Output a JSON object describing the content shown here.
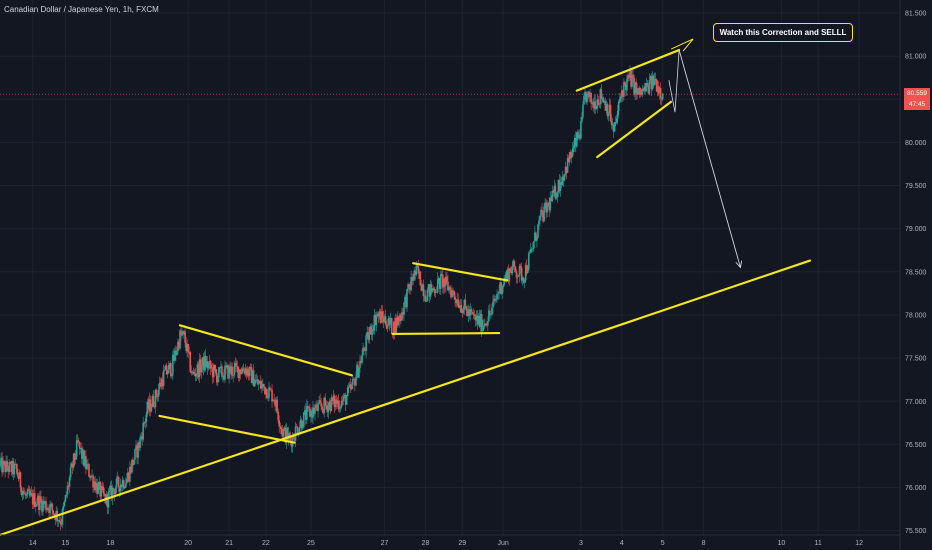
{
  "header": {
    "symbol_line": "Canadian Dollar / Japanese Yen, 1h, FXCM"
  },
  "annotation": {
    "callout_text": "Watch this Correction and SELLL"
  },
  "price_axis": {
    "labels": [
      "81.500",
      "81.000",
      "80.500",
      "80.000",
      "79.500",
      "79.000",
      "78.500",
      "78.000",
      "77.500",
      "77.000",
      "76.500",
      "76.000",
      "75.500"
    ],
    "last_price": "80.559",
    "countdown": "47:45"
  },
  "time_axis": {
    "labels": [
      "14",
      "15",
      "18",
      "20",
      "21",
      "22",
      "25",
      "27",
      "28",
      "29",
      "Jun",
      "3",
      "4",
      "5",
      "8",
      "10",
      "11",
      "12"
    ]
  },
  "colors": {
    "background": "#131722",
    "candle_up": "#26a69a",
    "candle_down": "#ef5350",
    "drawing": "#f5e51b",
    "projection_arrow": "#d1d4dc",
    "axis_text": "#b2b5be"
  },
  "chart_data": {
    "type": "candlestick",
    "title": "Canadian Dollar / Japanese Yen, 1h, FXCM",
    "ylim": [
      75.45,
      81.65
    ],
    "price_ticks": [
      81.5,
      81.0,
      80.5,
      80.0,
      79.5,
      79.0,
      78.5,
      78.0,
      77.5,
      77.0,
      76.5,
      76.0,
      75.5
    ],
    "x_index_range": [
      0,
      220
    ],
    "x_ticks": [
      {
        "label": "14",
        "index": 8
      },
      {
        "label": "15",
        "index": 16
      },
      {
        "label": "18",
        "index": 27
      },
      {
        "label": "20",
        "index": 46
      },
      {
        "label": "21",
        "index": 56
      },
      {
        "label": "22",
        "index": 65
      },
      {
        "label": "25",
        "index": 76
      },
      {
        "label": "27",
        "index": 94
      },
      {
        "label": "28",
        "index": 104
      },
      {
        "label": "29",
        "index": 113
      },
      {
        "label": "Jun",
        "index": 123
      },
      {
        "label": "3",
        "index": 142
      },
      {
        "label": "4",
        "index": 152
      },
      {
        "label": "5",
        "index": 162
      },
      {
        "label": "8",
        "index": 172
      },
      {
        "label": "10",
        "index": 191
      },
      {
        "label": "11",
        "index": 200
      },
      {
        "label": "12",
        "index": 210
      }
    ],
    "close_path": [
      [
        0,
        76.25
      ],
      [
        4,
        76.2
      ],
      [
        6,
        75.9
      ],
      [
        9,
        75.85
      ],
      [
        12,
        75.78
      ],
      [
        15,
        75.62
      ],
      [
        17,
        76.1
      ],
      [
        19,
        76.5
      ],
      [
        21,
        76.25
      ],
      [
        24,
        75.98
      ],
      [
        26,
        75.85
      ],
      [
        28,
        76.0
      ],
      [
        31,
        76.1
      ],
      [
        34,
        76.5
      ],
      [
        36,
        76.9
      ],
      [
        38,
        77.05
      ],
      [
        40,
        77.3
      ],
      [
        42,
        77.4
      ],
      [
        44,
        77.75
      ],
      [
        45,
        77.75
      ],
      [
        47,
        77.3
      ],
      [
        50,
        77.45
      ],
      [
        53,
        77.3
      ],
      [
        56,
        77.35
      ],
      [
        60,
        77.38
      ],
      [
        63,
        77.2
      ],
      [
        65,
        77.15
      ],
      [
        67,
        77.05
      ],
      [
        69,
        76.65
      ],
      [
        71,
        76.55
      ],
      [
        73,
        76.72
      ],
      [
        75,
        76.85
      ],
      [
        78,
        76.92
      ],
      [
        81,
        76.98
      ],
      [
        84,
        77.0
      ],
      [
        86,
        77.15
      ],
      [
        88,
        77.45
      ],
      [
        90,
        77.75
      ],
      [
        92,
        78.0
      ],
      [
        94,
        77.95
      ],
      [
        96,
        77.85
      ],
      [
        98,
        78.0
      ],
      [
        101,
        78.45
      ],
      [
        102,
        78.5
      ],
      [
        104,
        78.25
      ],
      [
        106,
        78.3
      ],
      [
        108,
        78.4
      ],
      [
        110,
        78.3
      ],
      [
        113,
        78.1
      ],
      [
        116,
        77.95
      ],
      [
        118,
        77.9
      ],
      [
        120,
        78.02
      ],
      [
        122,
        78.3
      ],
      [
        125,
        78.55
      ],
      [
        128,
        78.45
      ],
      [
        130,
        78.75
      ],
      [
        132,
        79.1
      ],
      [
        135,
        79.35
      ],
      [
        137,
        79.55
      ],
      [
        140,
        79.9
      ],
      [
        142,
        80.15
      ],
      [
        143,
        80.55
      ],
      [
        145,
        80.45
      ],
      [
        147,
        80.55
      ],
      [
        149,
        80.35
      ],
      [
        150,
        80.1
      ],
      [
        152,
        80.6
      ],
      [
        154,
        80.75
      ],
      [
        156,
        80.55
      ],
      [
        158,
        80.62
      ],
      [
        160,
        80.72
      ],
      [
        162,
        80.56
      ]
    ],
    "trendlines": [
      {
        "name": "main support",
        "from": [
          0,
          75.45
        ],
        "to": [
          198,
          78.63
        ]
      },
      {
        "name": "first channel top",
        "from": [
          44,
          77.88
        ],
        "to": [
          86,
          77.3
        ]
      },
      {
        "name": "first channel bottom",
        "from": [
          39,
          76.83
        ],
        "to": [
          72,
          76.52
        ]
      },
      {
        "name": "second channel top",
        "from": [
          101,
          78.6
        ],
        "to": [
          124,
          78.4
        ]
      },
      {
        "name": "second channel bottom",
        "from": [
          96,
          77.78
        ],
        "to": [
          122,
          77.79
        ]
      },
      {
        "name": "upper wedge top",
        "from": [
          141,
          80.6
        ],
        "to": [
          166,
          81.07
        ]
      },
      {
        "name": "upper wedge bottom",
        "from": [
          146,
          79.83
        ],
        "to": [
          164,
          80.47
        ]
      }
    ],
    "projection": {
      "from": [
        166,
        81.07
      ],
      "to": [
        181,
        78.55
      ]
    }
  }
}
